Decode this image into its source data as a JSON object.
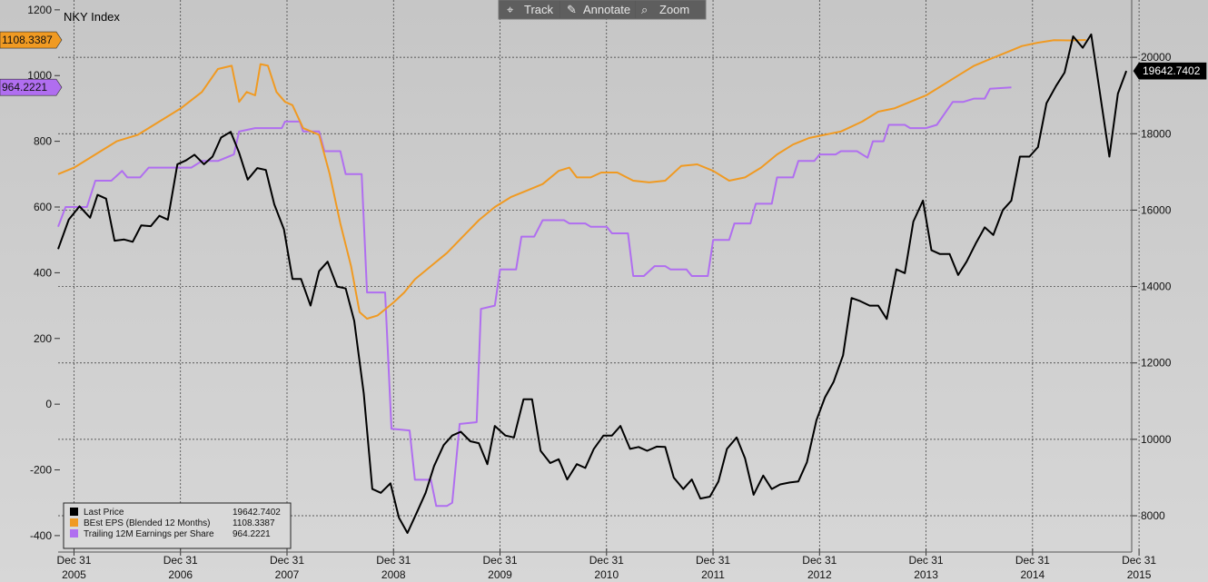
{
  "toolbar": {
    "track_label": "Track",
    "annotate_label": "Annotate",
    "zoom_label": "Zoom"
  },
  "chart_data": {
    "type": "line",
    "title": "NKY Index",
    "x_axis": {
      "range": [
        2005.85,
        2015.93
      ],
      "tick_top_label": "Dec 31",
      "ticks": [
        {
          "x": 2005.999,
          "year": "2005"
        },
        {
          "x": 2006.999,
          "year": "2006"
        },
        {
          "x": 2007.999,
          "year": "2007"
        },
        {
          "x": 2008.999,
          "year": "2008"
        },
        {
          "x": 2009.999,
          "year": "2009"
        },
        {
          "x": 2010.999,
          "year": "2010"
        },
        {
          "x": 2011.999,
          "year": "2011"
        },
        {
          "x": 2012.999,
          "year": "2012"
        },
        {
          "x": 2013.999,
          "year": "2013"
        },
        {
          "x": 2014.999,
          "year": "2014"
        },
        {
          "x": 2015.999,
          "year": "2015"
        }
      ]
    },
    "left_axis": {
      "range": [
        -450,
        1230
      ],
      "ticks": [
        "1200",
        "1000",
        "800",
        "600",
        "400",
        "200",
        "0",
        "-200",
        "-400"
      ]
    },
    "right_axis": {
      "range": [
        7050,
        21500
      ],
      "ticks": [
        "20000",
        "18000",
        "16000",
        "14000",
        "12000",
        "10000",
        "8000"
      ]
    },
    "grid": true,
    "legend_position": "bottom-left",
    "series": [
      {
        "name": "Last Price",
        "value_label": "19642.7402",
        "color": "#000000",
        "axis": "right",
        "points": [
          [
            2005.85,
            14980
          ],
          [
            2005.95,
            15750
          ],
          [
            2006.05,
            16100
          ],
          [
            2006.15,
            15800
          ],
          [
            2006.22,
            16400
          ],
          [
            2006.3,
            16300
          ],
          [
            2006.38,
            15200
          ],
          [
            2006.47,
            15230
          ],
          [
            2006.55,
            15170
          ],
          [
            2006.63,
            15600
          ],
          [
            2006.72,
            15580
          ],
          [
            2006.8,
            15850
          ],
          [
            2006.88,
            15750
          ],
          [
            2006.97,
            17200
          ],
          [
            2007.05,
            17300
          ],
          [
            2007.13,
            17450
          ],
          [
            2007.22,
            17200
          ],
          [
            2007.3,
            17400
          ],
          [
            2007.38,
            17900
          ],
          [
            2007.47,
            18050
          ],
          [
            2007.55,
            17500
          ],
          [
            2007.63,
            16800
          ],
          [
            2007.72,
            17100
          ],
          [
            2007.8,
            17050
          ],
          [
            2007.88,
            16150
          ],
          [
            2007.97,
            15500
          ],
          [
            2008.05,
            14200
          ],
          [
            2008.13,
            14200
          ],
          [
            2008.22,
            13500
          ],
          [
            2008.3,
            14400
          ],
          [
            2008.38,
            14650
          ],
          [
            2008.47,
            14000
          ],
          [
            2008.55,
            13950
          ],
          [
            2008.63,
            13100
          ],
          [
            2008.72,
            11200
          ],
          [
            2008.8,
            8700
          ],
          [
            2008.88,
            8600
          ],
          [
            2008.97,
            8850
          ],
          [
            2009.05,
            7950
          ],
          [
            2009.13,
            7550
          ],
          [
            2009.22,
            8100
          ],
          [
            2009.3,
            8600
          ],
          [
            2009.38,
            9300
          ],
          [
            2009.47,
            9850
          ],
          [
            2009.55,
            10100
          ],
          [
            2009.63,
            10200
          ],
          [
            2009.72,
            9950
          ],
          [
            2009.8,
            9900
          ],
          [
            2009.88,
            9350
          ],
          [
            2009.95,
            10350
          ],
          [
            2010.05,
            10100
          ],
          [
            2010.13,
            10050
          ],
          [
            2010.22,
            11050
          ],
          [
            2010.3,
            11050
          ],
          [
            2010.38,
            9700
          ],
          [
            2010.47,
            9380
          ],
          [
            2010.55,
            9480
          ],
          [
            2010.63,
            8950
          ],
          [
            2010.72,
            9350
          ],
          [
            2010.8,
            9250
          ],
          [
            2010.88,
            9750
          ],
          [
            2010.97,
            10100
          ],
          [
            2011.05,
            10100
          ],
          [
            2011.13,
            10350
          ],
          [
            2011.22,
            9750
          ],
          [
            2011.3,
            9800
          ],
          [
            2011.38,
            9700
          ],
          [
            2011.47,
            9810
          ],
          [
            2011.55,
            9800
          ],
          [
            2011.63,
            9000
          ],
          [
            2011.72,
            8700
          ],
          [
            2011.8,
            8950
          ],
          [
            2011.88,
            8450
          ],
          [
            2011.97,
            8500
          ],
          [
            2012.05,
            8900
          ],
          [
            2012.13,
            9750
          ],
          [
            2012.22,
            10050
          ],
          [
            2012.3,
            9500
          ],
          [
            2012.38,
            8550
          ],
          [
            2012.47,
            9050
          ],
          [
            2012.55,
            8700
          ],
          [
            2012.63,
            8820
          ],
          [
            2012.72,
            8870
          ],
          [
            2012.8,
            8900
          ],
          [
            2012.88,
            9400
          ],
          [
            2012.97,
            10500
          ],
          [
            2013.05,
            11100
          ],
          [
            2013.13,
            11500
          ],
          [
            2013.22,
            12200
          ],
          [
            2013.3,
            13700
          ],
          [
            2013.38,
            13620
          ],
          [
            2013.47,
            13500
          ],
          [
            2013.55,
            13500
          ],
          [
            2013.63,
            13150
          ],
          [
            2013.72,
            14450
          ],
          [
            2013.8,
            14350
          ],
          [
            2013.88,
            15700
          ],
          [
            2013.97,
            16250
          ],
          [
            2014.05,
            14950
          ],
          [
            2014.13,
            14850
          ],
          [
            2014.22,
            14850
          ],
          [
            2014.3,
            14300
          ],
          [
            2014.38,
            14650
          ],
          [
            2014.47,
            15150
          ],
          [
            2014.55,
            15550
          ],
          [
            2014.63,
            15350
          ],
          [
            2014.72,
            16000
          ],
          [
            2014.8,
            16250
          ],
          [
            2014.88,
            17400
          ],
          [
            2014.97,
            17400
          ],
          [
            2015.05,
            17650
          ],
          [
            2015.13,
            18800
          ],
          [
            2015.22,
            19250
          ],
          [
            2015.3,
            19600
          ],
          [
            2015.38,
            20550
          ],
          [
            2015.47,
            20250
          ],
          [
            2015.55,
            20600
          ],
          [
            2015.63,
            19100
          ],
          [
            2015.72,
            17400
          ],
          [
            2015.8,
            19050
          ],
          [
            2015.88,
            19642.74
          ]
        ]
      },
      {
        "name": "BEst EPS (Blended 12 Months)",
        "value_label": "1108.3387",
        "color": "#f09a22",
        "axis": "left",
        "points": [
          [
            2005.85,
            700
          ],
          [
            2006,
            720
          ],
          [
            2006.2,
            760
          ],
          [
            2006.4,
            800
          ],
          [
            2006.6,
            820
          ],
          [
            2006.8,
            860
          ],
          [
            2007,
            900
          ],
          [
            2007.2,
            950
          ],
          [
            2007.35,
            1020
          ],
          [
            2007.48,
            1030
          ],
          [
            2007.55,
            920
          ],
          [
            2007.62,
            950
          ],
          [
            2007.7,
            940
          ],
          [
            2007.75,
            1035
          ],
          [
            2007.82,
            1030
          ],
          [
            2007.9,
            950
          ],
          [
            2007.98,
            920
          ],
          [
            2008.05,
            910
          ],
          [
            2008.15,
            840
          ],
          [
            2008.3,
            820
          ],
          [
            2008.4,
            700
          ],
          [
            2008.5,
            550
          ],
          [
            2008.6,
            420
          ],
          [
            2008.68,
            280
          ],
          [
            2008.75,
            260
          ],
          [
            2008.85,
            270
          ],
          [
            2009,
            310
          ],
          [
            2009.1,
            340
          ],
          [
            2009.2,
            380
          ],
          [
            2009.35,
            420
          ],
          [
            2009.5,
            460
          ],
          [
            2009.65,
            510
          ],
          [
            2009.8,
            560
          ],
          [
            2009.95,
            600
          ],
          [
            2010.1,
            630
          ],
          [
            2010.25,
            650
          ],
          [
            2010.4,
            670
          ],
          [
            2010.55,
            710
          ],
          [
            2010.65,
            720
          ],
          [
            2010.72,
            690
          ],
          [
            2010.85,
            690
          ],
          [
            2010.95,
            705
          ],
          [
            2011.1,
            705
          ],
          [
            2011.25,
            680
          ],
          [
            2011.4,
            675
          ],
          [
            2011.55,
            680
          ],
          [
            2011.7,
            725
          ],
          [
            2011.85,
            730
          ],
          [
            2012,
            710
          ],
          [
            2012.15,
            680
          ],
          [
            2012.3,
            690
          ],
          [
            2012.45,
            720
          ],
          [
            2012.6,
            760
          ],
          [
            2012.75,
            790
          ],
          [
            2012.9,
            810
          ],
          [
            2013.05,
            820
          ],
          [
            2013.2,
            830
          ],
          [
            2013.4,
            860
          ],
          [
            2013.55,
            890
          ],
          [
            2013.7,
            900
          ],
          [
            2013.85,
            920
          ],
          [
            2014,
            940
          ],
          [
            2014.15,
            970
          ],
          [
            2014.3,
            1000
          ],
          [
            2014.45,
            1030
          ],
          [
            2014.6,
            1050
          ],
          [
            2014.75,
            1070
          ],
          [
            2014.9,
            1090
          ],
          [
            2015.05,
            1100
          ],
          [
            2015.2,
            1108
          ],
          [
            2015.35,
            1107
          ],
          [
            2015.5,
            1108.34
          ]
        ]
      },
      {
        "name": "Trailing 12M Earnings per Share",
        "value_label": "964.2221",
        "color": "#b06ef0",
        "axis": "left",
        "points": [
          [
            2005.85,
            540
          ],
          [
            2005.92,
            600
          ],
          [
            2006.12,
            600
          ],
          [
            2006.2,
            680
          ],
          [
            2006.35,
            680
          ],
          [
            2006.45,
            710
          ],
          [
            2006.5,
            690
          ],
          [
            2006.62,
            690
          ],
          [
            2006.7,
            720
          ],
          [
            2006.95,
            720
          ],
          [
            2007.1,
            720
          ],
          [
            2007.2,
            740
          ],
          [
            2007.35,
            740
          ],
          [
            2007.5,
            760
          ],
          [
            2007.55,
            830
          ],
          [
            2007.7,
            840
          ],
          [
            2007.95,
            840
          ],
          [
            2007.98,
            860
          ],
          [
            2008.12,
            860
          ],
          [
            2008.15,
            830
          ],
          [
            2008.3,
            830
          ],
          [
            2008.35,
            770
          ],
          [
            2008.5,
            770
          ],
          [
            2008.55,
            700
          ],
          [
            2008.7,
            700
          ],
          [
            2008.75,
            340
          ],
          [
            2008.92,
            340
          ],
          [
            2008.98,
            -75
          ],
          [
            2009.15,
            -80
          ],
          [
            2009.2,
            -230
          ],
          [
            2009.35,
            -230
          ],
          [
            2009.4,
            -310
          ],
          [
            2009.5,
            -310
          ],
          [
            2009.55,
            -300
          ],
          [
            2009.62,
            -60
          ],
          [
            2009.78,
            -55
          ],
          [
            2009.82,
            290
          ],
          [
            2009.95,
            300
          ],
          [
            2010,
            410
          ],
          [
            2010.15,
            410
          ],
          [
            2010.2,
            510
          ],
          [
            2010.32,
            510
          ],
          [
            2010.4,
            560
          ],
          [
            2010.6,
            560
          ],
          [
            2010.65,
            550
          ],
          [
            2010.8,
            550
          ],
          [
            2010.85,
            540
          ],
          [
            2011,
            540
          ],
          [
            2011.05,
            520
          ],
          [
            2011.2,
            520
          ],
          [
            2011.25,
            390
          ],
          [
            2011.35,
            390
          ],
          [
            2011.45,
            420
          ],
          [
            2011.55,
            420
          ],
          [
            2011.6,
            410
          ],
          [
            2011.75,
            410
          ],
          [
            2011.8,
            390
          ],
          [
            2011.95,
            390
          ],
          [
            2012,
            500
          ],
          [
            2012.15,
            500
          ],
          [
            2012.2,
            550
          ],
          [
            2012.35,
            550
          ],
          [
            2012.4,
            610
          ],
          [
            2012.55,
            610
          ],
          [
            2012.6,
            690
          ],
          [
            2012.75,
            690
          ],
          [
            2012.8,
            740
          ],
          [
            2012.95,
            740
          ],
          [
            2013,
            760
          ],
          [
            2013.15,
            760
          ],
          [
            2013.2,
            770
          ],
          [
            2013.35,
            770
          ],
          [
            2013.45,
            750
          ],
          [
            2013.5,
            800
          ],
          [
            2013.6,
            800
          ],
          [
            2013.65,
            850
          ],
          [
            2013.8,
            850
          ],
          [
            2013.85,
            840
          ],
          [
            2014,
            840
          ],
          [
            2014.1,
            850
          ],
          [
            2014.25,
            920
          ],
          [
            2014.35,
            920
          ],
          [
            2014.45,
            930
          ],
          [
            2014.55,
            930
          ],
          [
            2014.6,
            960
          ],
          [
            2014.8,
            964.22
          ]
        ]
      }
    ]
  }
}
